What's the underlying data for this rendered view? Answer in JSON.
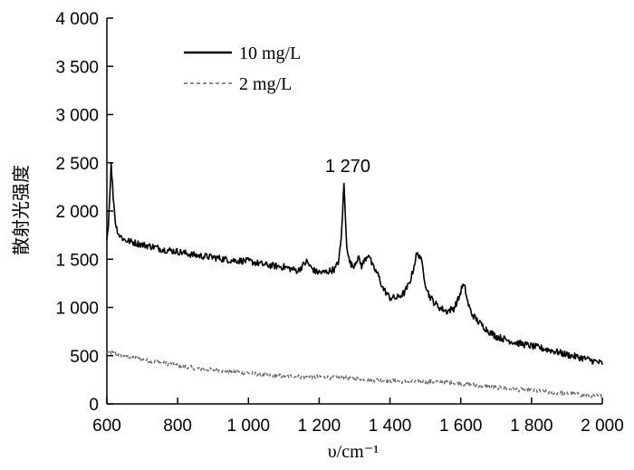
{
  "chart_data": {
    "type": "line",
    "xlabel": "υ/cm⁻¹",
    "ylabel": "散射光强度",
    "xlim": [
      600,
      2000
    ],
    "ylim": [
      0,
      4000
    ],
    "x_ticks": [
      600,
      800,
      1000,
      1200,
      1400,
      1600,
      1800,
      2000
    ],
    "x_tick_labels": [
      "600",
      "800",
      "1 000",
      "1 200",
      "1 400",
      "1 600",
      "1 800",
      "2 000"
    ],
    "y_ticks": [
      0,
      500,
      1000,
      1500,
      2000,
      2500,
      3000,
      3500,
      4000
    ],
    "y_tick_labels": [
      "0",
      "500",
      "1 000",
      "1 500",
      "2 000",
      "2 500",
      "3 000",
      "3 500",
      "4 000"
    ],
    "grid": false,
    "legend_position": "top-left",
    "annotations": [
      {
        "text": "1 270",
        "x": 1270,
        "y": 2290
      }
    ],
    "series": [
      {
        "name": "10 mg/L",
        "color": "#000000",
        "style": "solid",
        "x": [
          600,
          605,
          612,
          618,
          625,
          635,
          650,
          670,
          700,
          730,
          760,
          800,
          850,
          900,
          950,
          1000,
          1050,
          1100,
          1140,
          1165,
          1175,
          1190,
          1210,
          1230,
          1245,
          1255,
          1262,
          1267,
          1270,
          1273,
          1278,
          1285,
          1295,
          1310,
          1320,
          1330,
          1340,
          1350,
          1365,
          1380,
          1400,
          1420,
          1440,
          1455,
          1465,
          1475,
          1485,
          1492,
          1500,
          1510,
          1525,
          1540,
          1560,
          1580,
          1595,
          1605,
          1612,
          1620,
          1630,
          1650,
          1680,
          1700,
          1750,
          1800,
          1850,
          1900,
          1950,
          2000
        ],
        "y": [
          1700,
          1900,
          2480,
          2150,
          1850,
          1750,
          1700,
          1680,
          1650,
          1630,
          1600,
          1580,
          1540,
          1520,
          1490,
          1480,
          1440,
          1420,
          1380,
          1480,
          1420,
          1370,
          1360,
          1380,
          1400,
          1480,
          1700,
          2050,
          2290,
          2000,
          1650,
          1480,
          1420,
          1520,
          1430,
          1500,
          1560,
          1430,
          1350,
          1200,
          1100,
          1100,
          1150,
          1250,
          1380,
          1550,
          1540,
          1420,
          1250,
          1130,
          1050,
          1000,
          960,
          990,
          1100,
          1230,
          1200,
          1050,
          940,
          850,
          750,
          700,
          640,
          600,
          560,
          510,
          470,
          420
        ]
      },
      {
        "name": "2 mg/L",
        "color": "#666666",
        "style": "dashed",
        "x": [
          600,
          650,
          700,
          750,
          800,
          850,
          900,
          950,
          1000,
          1050,
          1100,
          1150,
          1200,
          1250,
          1300,
          1350,
          1400,
          1450,
          1500,
          1550,
          1600,
          1650,
          1700,
          1750,
          1800,
          1850,
          1900,
          1950,
          2000
        ],
        "y": [
          540,
          500,
          460,
          430,
          400,
          370,
          350,
          340,
          320,
          300,
          290,
          280,
          280,
          270,
          270,
          250,
          240,
          230,
          230,
          230,
          210,
          190,
          170,
          150,
          140,
          120,
          110,
          90,
          80
        ]
      }
    ]
  }
}
